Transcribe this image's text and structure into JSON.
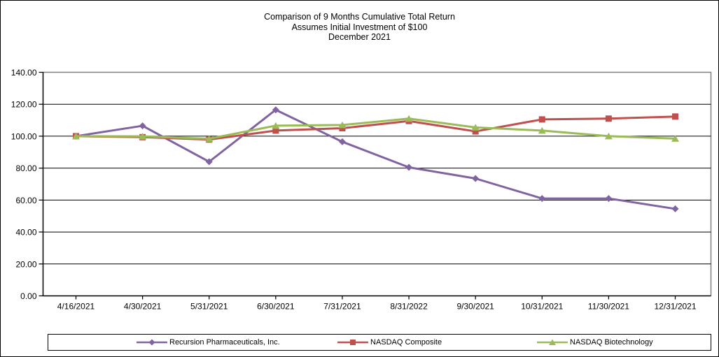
{
  "chart_data": {
    "type": "line",
    "title_lines": [
      "Comparison of 9 Months Cumulative Total Return",
      "Assumes Initial Investment of $100",
      "December 2021"
    ],
    "categories": [
      "4/16/2021",
      "4/30/2021",
      "5/31/2021",
      "6/30/2021",
      "7/31/2021",
      "8/31/2022",
      "9/30/2021",
      "10/31/2021",
      "11/30/2021",
      "12/31/2021"
    ],
    "series": [
      {
        "name": "Recursion Pharmaceuticals, Inc.",
        "color": "#8064A2",
        "marker": "diamond",
        "values": [
          100,
          106.5,
          84,
          116.5,
          96.5,
          80.5,
          73.5,
          61,
          61,
          54.5
        ]
      },
      {
        "name": "NASDAQ Composite",
        "color": "#C0504D",
        "marker": "square",
        "values": [
          100,
          99.4,
          97.9,
          103.5,
          105,
          109.5,
          103,
          110.5,
          111,
          112.3
        ]
      },
      {
        "name": "NASDAQ Biotechnology",
        "color": "#9BBB59",
        "marker": "triangle",
        "values": [
          100,
          99.9,
          98.4,
          106.6,
          107,
          111,
          105.5,
          103.5,
          100,
          98.5
        ]
      }
    ],
    "xlabel": "",
    "ylabel": "",
    "ylim": [
      0,
      140
    ],
    "ytick_step": 20,
    "ytick_labels": [
      "0.00",
      "20.00",
      "40.00",
      "60.00",
      "80.00",
      "100.00",
      "120.00",
      "140.00"
    ],
    "grid": true,
    "gridline_color": "#000000",
    "axis_color": "#000000",
    "plot_border_color": "#808080",
    "legend_position": "bottom"
  }
}
